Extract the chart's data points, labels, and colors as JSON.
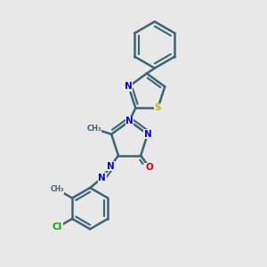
{
  "background_color": "#e8e8e8",
  "bond_color": "#3a6575",
  "bond_width": 1.8,
  "atom_colors": {
    "N": "#0000ee",
    "O": "#dd0000",
    "S": "#bbbb00",
    "Cl": "#00aa00",
    "C": "#3a6575"
  },
  "font_size_atom": 7.5,
  "font_size_small": 6.0
}
